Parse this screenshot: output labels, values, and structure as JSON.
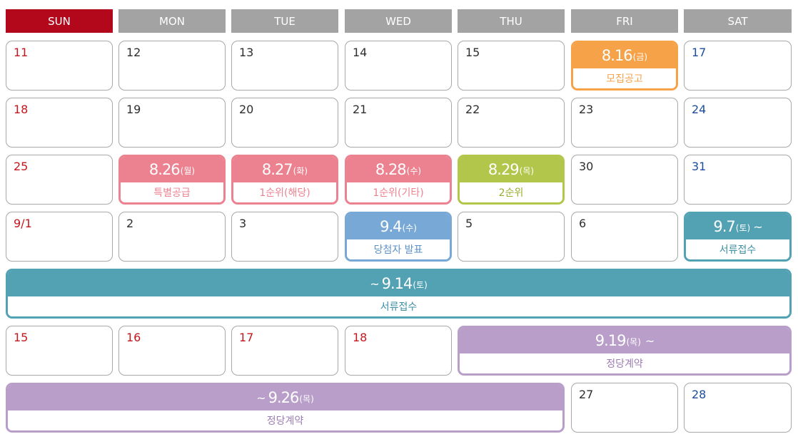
{
  "colors": {
    "sunday_header": "#b3081c",
    "weekday_header": "#a3a3a3",
    "sunday_text": "#c4161c",
    "saturday_text": "#1d4e9b",
    "orange": "#f5a248",
    "pink": "#ec8290",
    "green": "#b1c64a",
    "blue": "#77a8d6",
    "teal": "#53a2b4",
    "purple": "#b89ec9"
  },
  "weekdays": [
    "SUN",
    "MON",
    "TUE",
    "WED",
    "THU",
    "FRI",
    "SAT"
  ],
  "days": {
    "r1": [
      "11",
      "12",
      "13",
      "14",
      "15",
      "17"
    ],
    "r2": [
      "18",
      "19",
      "20",
      "21",
      "22",
      "23",
      "24"
    ],
    "r3": [
      "25",
      "30",
      "31"
    ],
    "r4": [
      "9/1",
      "2",
      "3",
      "5",
      "6"
    ],
    "r6": [
      "15",
      "16",
      "17",
      "18"
    ],
    "r7": [
      "27",
      "28"
    ]
  },
  "events": {
    "announce": {
      "date": "8.16",
      "day": "(금)",
      "label": "모집공고"
    },
    "special": {
      "date": "8.26",
      "day": "(월)",
      "label": "특별공급"
    },
    "first_local": {
      "date": "8.27",
      "day": "(화)",
      "label": "1순위(해당)"
    },
    "first_other": {
      "date": "8.28",
      "day": "(수)",
      "label": "1순위(기타)"
    },
    "second": {
      "date": "8.29",
      "day": "(목)",
      "label": "2순위"
    },
    "winner": {
      "date": "9.4",
      "day": "(수)",
      "label": "당첨자 발표"
    },
    "docs_start": {
      "date": "9.7",
      "day": "(토)",
      "tilde": "~",
      "label": "서류접수"
    },
    "docs_end": {
      "tilde": "~",
      "date": "9.14",
      "day": "(토)",
      "label": "서류접수"
    },
    "contract_start": {
      "date": "9.19",
      "day": "(목)",
      "tilde": "~",
      "label": "정당계약"
    },
    "contract_end": {
      "tilde": "~",
      "date": "9.26",
      "day": "(목)",
      "label": "정당계약"
    }
  }
}
